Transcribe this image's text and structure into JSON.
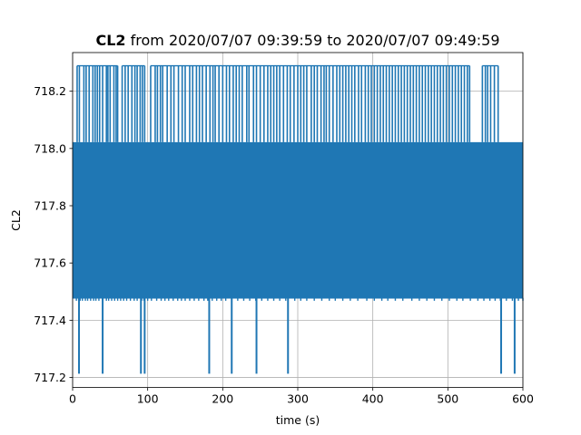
{
  "chart_data": {
    "type": "line",
    "title_channel": "CL2",
    "title_rest": " from 2020/07/07 09:39:59 to 2020/07/07 09:49:59",
    "xlabel": "time (s)",
    "ylabel": "CL2",
    "xlim": [
      0,
      600
    ],
    "ylim": [
      717.165,
      718.335
    ],
    "x_ticks": [
      0,
      100,
      200,
      300,
      400,
      500,
      600
    ],
    "x_tick_labels": [
      "0",
      "100",
      "200",
      "300",
      "400",
      "500",
      "600"
    ],
    "y_ticks": [
      717.2,
      717.4,
      717.6,
      717.8,
      718.0,
      718.2
    ],
    "y_tick_labels": [
      "717.2",
      "717.4",
      "717.6",
      "717.8",
      "718.0",
      "718.2"
    ],
    "grid": true,
    "series": [
      {
        "color": "#1f77b4",
        "description_levels": [
          717.213,
          717.478,
          717.745,
          718.022,
          718.289
        ],
        "band_low": 717.478,
        "band_high": 718.022,
        "high_spikes_x": [
          6,
          9,
          15,
          18,
          22,
          27,
          30,
          33,
          36,
          40,
          45,
          47,
          50,
          55,
          58,
          60,
          66,
          70,
          74,
          79,
          83,
          86,
          90,
          93,
          96,
          104,
          110,
          113,
          117,
          120,
          126,
          131,
          135,
          141,
          146,
          150,
          156,
          160,
          165,
          169,
          173,
          178,
          183,
          187,
          190,
          195,
          200,
          205,
          209,
          214,
          218,
          222,
          226,
          232,
          235,
          241,
          245,
          250,
          255,
          260,
          264,
          268,
          272,
          276,
          281,
          286,
          290,
          295,
          300,
          304,
          308,
          312,
          318,
          322,
          326,
          331,
          335,
          338,
          342,
          347,
          352,
          356,
          360,
          364,
          368,
          372,
          376,
          381,
          385,
          390,
          394,
          398,
          402,
          406,
          410,
          414,
          418,
          422,
          426,
          430,
          434,
          438,
          442,
          446,
          450,
          454,
          458,
          462,
          466,
          470,
          474,
          478,
          482,
          486,
          490,
          494,
          498,
          502,
          506,
          510,
          514,
          518,
          522,
          526,
          529,
          546,
          550,
          553,
          557,
          562,
          567
        ],
        "low_drops_x": [
          5,
          8,
          10,
          13,
          17,
          20,
          24,
          28,
          31,
          35,
          40,
          45,
          48,
          52,
          56,
          60,
          64,
          68,
          72,
          77,
          82,
          86,
          92,
          95,
          100,
          105,
          112,
          118,
          123,
          128,
          134,
          140,
          145,
          150,
          156,
          162,
          168,
          175,
          180,
          186,
          192,
          198,
          204,
          212,
          220,
          228,
          236,
          244,
          252,
          260,
          268,
          276,
          284,
          296,
          304,
          312,
          322,
          332,
          342,
          350,
          360,
          370,
          380,
          392,
          402,
          412,
          420,
          430,
          440,
          452,
          462,
          472,
          482,
          492,
          502,
          512,
          520,
          530,
          540,
          548,
          556,
          563,
          570,
          578,
          586,
          594,
          600
        ],
        "min_spikes_x": [
          8.5,
          40,
          91,
          96,
          182,
          212,
          245,
          287,
          571,
          589
        ]
      }
    ]
  }
}
